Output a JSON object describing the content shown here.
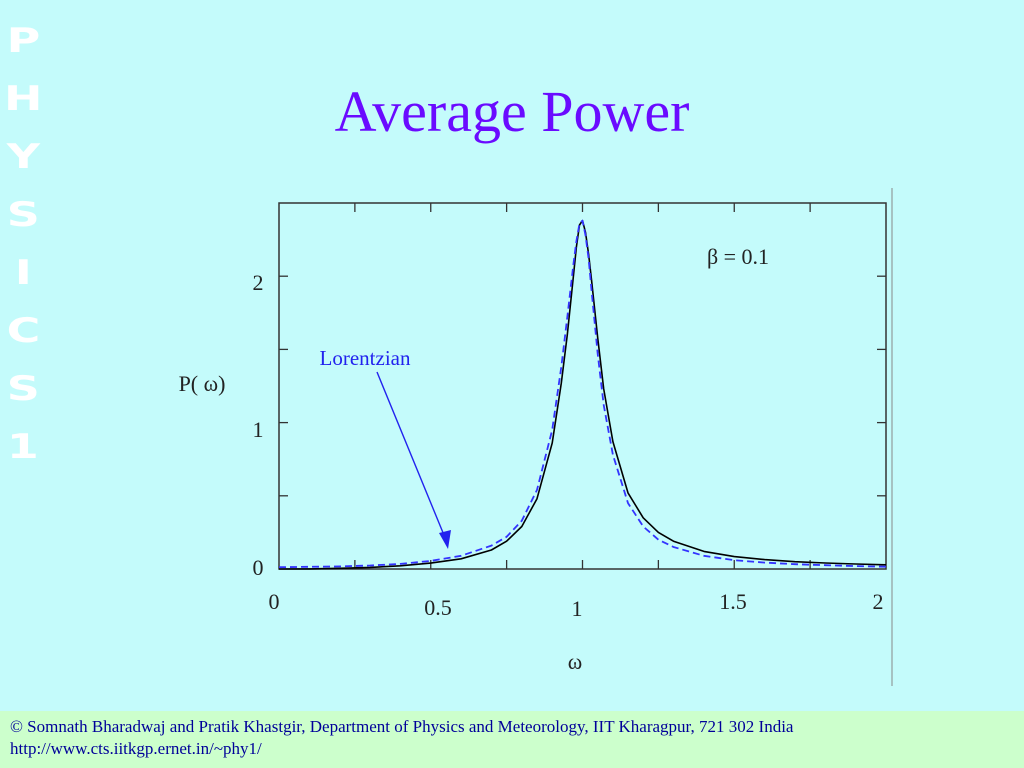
{
  "slide": {
    "title": "Average Power",
    "side_text": [
      "P",
      "H",
      "Y",
      "S",
      "I",
      "C",
      "S",
      "1"
    ],
    "colors": {
      "background": "#c4fbfb",
      "title": "#6a0bff",
      "footer_bg": "#ccffcc",
      "footer_text": "#000099"
    }
  },
  "chart_data": {
    "type": "line",
    "ylabel": "P( ω)",
    "xlabel": "ω",
    "xlim": [
      0,
      2
    ],
    "ylim": [
      0,
      2.5
    ],
    "x_ticks": [
      "0",
      "0.5",
      "1",
      "1.5",
      "2"
    ],
    "y_ticks": [
      "0",
      "1",
      "2"
    ],
    "annotations": [
      "β = 0.1",
      "Lorentzian"
    ],
    "series": [
      {
        "style": "solid",
        "color": "#000000",
        "x": [
          0,
          0.1,
          0.2,
          0.3,
          0.4,
          0.5,
          0.6,
          0.7,
          0.75,
          0.8,
          0.85,
          0.9,
          0.93,
          0.95,
          0.97,
          0.98,
          0.99,
          1.0,
          1.01,
          1.02,
          1.03,
          1.05,
          1.07,
          1.1,
          1.15,
          1.2,
          1.25,
          1.3,
          1.4,
          1.5,
          1.6,
          1.7,
          1.8,
          1.9,
          2.0
        ],
        "y": [
          0,
          0.001,
          0.005,
          0.011,
          0.022,
          0.04,
          0.07,
          0.13,
          0.19,
          0.29,
          0.48,
          0.86,
          1.27,
          1.6,
          2.0,
          2.2,
          2.35,
          2.38,
          2.3,
          2.15,
          1.97,
          1.58,
          1.23,
          0.87,
          0.52,
          0.35,
          0.25,
          0.19,
          0.12,
          0.085,
          0.064,
          0.05,
          0.041,
          0.034,
          0.029
        ]
      },
      {
        "name": "Lorentzian",
        "style": "dashed",
        "color": "#3333ff",
        "x": [
          0,
          0.1,
          0.2,
          0.3,
          0.4,
          0.5,
          0.6,
          0.7,
          0.75,
          0.8,
          0.85,
          0.9,
          0.93,
          0.95,
          0.97,
          0.98,
          0.99,
          1.0,
          1.01,
          1.02,
          1.03,
          1.05,
          1.07,
          1.1,
          1.15,
          1.2,
          1.25,
          1.3,
          1.4,
          1.5,
          1.6,
          1.7,
          1.8,
          1.9,
          2.0
        ],
        "y": [
          0.012,
          0.015,
          0.018,
          0.024,
          0.035,
          0.055,
          0.09,
          0.16,
          0.22,
          0.33,
          0.54,
          0.95,
          1.38,
          1.72,
          2.08,
          2.24,
          2.36,
          2.38,
          2.28,
          2.12,
          1.9,
          1.47,
          1.12,
          0.78,
          0.45,
          0.29,
          0.2,
          0.15,
          0.09,
          0.06,
          0.044,
          0.033,
          0.026,
          0.02,
          0.016
        ]
      }
    ]
  },
  "footer": {
    "line1": "© Somnath Bharadwaj and Pratik Khastgir, Department of Physics and Meteorology, IIT Kharagpur, 721 302 India",
    "line2": "http://www.cts.iitkgp.ernet.in/~phy1/"
  }
}
